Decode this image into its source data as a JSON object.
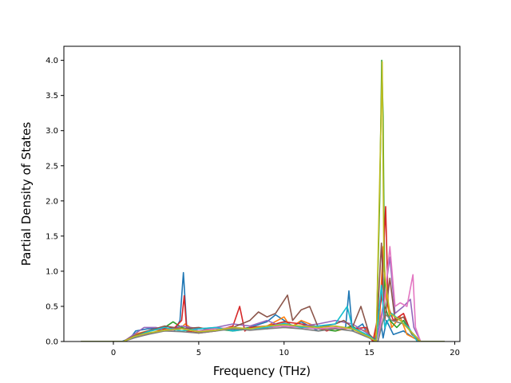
{
  "chart_data": {
    "type": "line",
    "title": "",
    "xlabel": "Frequency (THz)",
    "ylabel": "Partial Density of States",
    "xlim": [
      -2.9,
      20.3
    ],
    "ylim": [
      0.0,
      4.2
    ],
    "xticks": [
      0,
      5,
      10,
      15,
      20
    ],
    "xtick_labels": [
      "0",
      "5",
      "10",
      "15",
      "20"
    ],
    "yticks": [
      0.0,
      0.5,
      1.0,
      1.5,
      2.0,
      2.5,
      3.0,
      3.5,
      4.0
    ],
    "ytick_labels": [
      "0.0",
      "0.5",
      "1.0",
      "1.5",
      "2.0",
      "2.5",
      "3.0",
      "3.5",
      "4.0"
    ],
    "grid": false,
    "legend": "none",
    "series": [
      {
        "color": "#1f77b4",
        "points": [
          [
            -1.9,
            0
          ],
          [
            0.5,
            0
          ],
          [
            1.0,
            0.05
          ],
          [
            1.3,
            0.15
          ],
          [
            2.0,
            0.18
          ],
          [
            3.0,
            0.2
          ],
          [
            3.6,
            0.16
          ],
          [
            3.9,
            0.3
          ],
          [
            4.1,
            0.98
          ],
          [
            4.3,
            0.2
          ],
          [
            5.0,
            0.15
          ],
          [
            6.0,
            0.2
          ],
          [
            7.0,
            0.17
          ],
          [
            8.0,
            0.2
          ],
          [
            9.0,
            0.28
          ],
          [
            9.5,
            0.38
          ],
          [
            10.0,
            0.3
          ],
          [
            10.5,
            0.22
          ],
          [
            11.0,
            0.28
          ],
          [
            12.0,
            0.15
          ],
          [
            13.0,
            0.2
          ],
          [
            13.6,
            0.2
          ],
          [
            13.8,
            0.72
          ],
          [
            14.0,
            0.15
          ],
          [
            14.6,
            0.25
          ],
          [
            15.0,
            0.05
          ],
          [
            15.3,
            0
          ],
          [
            15.6,
            0.4
          ],
          [
            15.8,
            0.05
          ],
          [
            16.0,
            0.3
          ],
          [
            16.4,
            0.1
          ],
          [
            17.0,
            0.15
          ],
          [
            17.6,
            0.05
          ],
          [
            18.0,
            0
          ],
          [
            19.4,
            0
          ]
        ]
      },
      {
        "color": "#ff7f0e",
        "points": [
          [
            -1.9,
            0
          ],
          [
            0.6,
            0
          ],
          [
            1.2,
            0.1
          ],
          [
            2.0,
            0.15
          ],
          [
            3.0,
            0.18
          ],
          [
            4.0,
            0.2
          ],
          [
            4.2,
            0.25
          ],
          [
            5.0,
            0.12
          ],
          [
            6.0,
            0.2
          ],
          [
            7.0,
            0.15
          ],
          [
            8.0,
            0.18
          ],
          [
            9.0,
            0.22
          ],
          [
            10.0,
            0.35
          ],
          [
            10.4,
            0.2
          ],
          [
            11.0,
            0.3
          ],
          [
            12.0,
            0.2
          ],
          [
            13.0,
            0.15
          ],
          [
            14.0,
            0.2
          ],
          [
            14.8,
            0.15
          ],
          [
            15.2,
            0
          ],
          [
            15.6,
            0.3
          ],
          [
            15.8,
            1.35
          ],
          [
            16.0,
            0.6
          ],
          [
            16.3,
            0.2
          ],
          [
            16.8,
            0.35
          ],
          [
            17.2,
            0.1
          ],
          [
            17.6,
            0.05
          ],
          [
            18.0,
            0
          ],
          [
            19.4,
            0
          ]
        ]
      },
      {
        "color": "#2ca02c",
        "points": [
          [
            -1.9,
            0
          ],
          [
            0.6,
            0
          ],
          [
            1.2,
            0.08
          ],
          [
            2.0,
            0.14
          ],
          [
            3.0,
            0.2
          ],
          [
            3.5,
            0.28
          ],
          [
            4.0,
            0.2
          ],
          [
            5.0,
            0.14
          ],
          [
            6.0,
            0.18
          ],
          [
            7.0,
            0.15
          ],
          [
            8.0,
            0.2
          ],
          [
            9.0,
            0.18
          ],
          [
            10.0,
            0.25
          ],
          [
            11.0,
            0.2
          ],
          [
            12.0,
            0.18
          ],
          [
            13.0,
            0.15
          ],
          [
            14.0,
            0.22
          ],
          [
            15.0,
            0.05
          ],
          [
            15.4,
            0
          ],
          [
            15.6,
            2.0
          ],
          [
            15.72,
            4.0
          ],
          [
            15.8,
            3.2
          ],
          [
            15.9,
            0.5
          ],
          [
            16.2,
            0.3
          ],
          [
            16.6,
            0.2
          ],
          [
            17.0,
            0.3
          ],
          [
            17.5,
            0.1
          ],
          [
            18.0,
            0
          ],
          [
            19.4,
            0
          ]
        ]
      },
      {
        "color": "#d62728",
        "points": [
          [
            -1.9,
            0
          ],
          [
            0.6,
            0
          ],
          [
            1.2,
            0.06
          ],
          [
            2.0,
            0.1
          ],
          [
            3.0,
            0.18
          ],
          [
            3.6,
            0.2
          ],
          [
            4.0,
            0.3
          ],
          [
            4.15,
            0.65
          ],
          [
            4.3,
            0.15
          ],
          [
            5.0,
            0.12
          ],
          [
            6.0,
            0.15
          ],
          [
            7.0,
            0.22
          ],
          [
            7.4,
            0.5
          ],
          [
            7.7,
            0.15
          ],
          [
            8.0,
            0.2
          ],
          [
            9.0,
            0.22
          ],
          [
            10.0,
            0.28
          ],
          [
            11.0,
            0.25
          ],
          [
            12.0,
            0.2
          ],
          [
            12.5,
            0.15
          ],
          [
            13.0,
            0.2
          ],
          [
            14.0,
            0.18
          ],
          [
            14.8,
            0.2
          ],
          [
            15.2,
            0
          ],
          [
            15.7,
            0.6
          ],
          [
            15.95,
            1.92
          ],
          [
            16.1,
            0.5
          ],
          [
            16.4,
            0.3
          ],
          [
            17.0,
            0.4
          ],
          [
            17.4,
            0.15
          ],
          [
            18.0,
            0
          ],
          [
            19.4,
            0
          ]
        ]
      },
      {
        "color": "#9467bd",
        "points": [
          [
            -1.9,
            0
          ],
          [
            0.6,
            0
          ],
          [
            1.2,
            0.1
          ],
          [
            1.8,
            0.2
          ],
          [
            2.5,
            0.2
          ],
          [
            3.0,
            0.15
          ],
          [
            4.0,
            0.22
          ],
          [
            5.0,
            0.18
          ],
          [
            6.0,
            0.2
          ],
          [
            7.0,
            0.25
          ],
          [
            8.0,
            0.22
          ],
          [
            9.0,
            0.3
          ],
          [
            10.0,
            0.2
          ],
          [
            11.0,
            0.22
          ],
          [
            12.0,
            0.25
          ],
          [
            13.0,
            0.3
          ],
          [
            14.0,
            0.25
          ],
          [
            15.0,
            0.1
          ],
          [
            15.4,
            0
          ],
          [
            15.8,
            0.5
          ],
          [
            16.2,
            1.2
          ],
          [
            16.5,
            0.4
          ],
          [
            17.0,
            0.5
          ],
          [
            17.4,
            0.6
          ],
          [
            17.6,
            0.2
          ],
          [
            18.0,
            0
          ],
          [
            19.4,
            0
          ]
        ]
      },
      {
        "color": "#8c564b",
        "points": [
          [
            -1.9,
            0
          ],
          [
            0.6,
            0
          ],
          [
            1.2,
            0.08
          ],
          [
            2.0,
            0.15
          ],
          [
            3.0,
            0.22
          ],
          [
            4.0,
            0.18
          ],
          [
            5.0,
            0.2
          ],
          [
            6.0,
            0.15
          ],
          [
            7.0,
            0.2
          ],
          [
            8.0,
            0.3
          ],
          [
            8.5,
            0.42
          ],
          [
            9.0,
            0.35
          ],
          [
            9.5,
            0.4
          ],
          [
            10.2,
            0.66
          ],
          [
            10.5,
            0.3
          ],
          [
            11.0,
            0.45
          ],
          [
            11.5,
            0.5
          ],
          [
            12.0,
            0.2
          ],
          [
            13.0,
            0.25
          ],
          [
            13.5,
            0.3
          ],
          [
            14.0,
            0.2
          ],
          [
            14.5,
            0.5
          ],
          [
            15.0,
            0.1
          ],
          [
            15.4,
            0
          ],
          [
            15.7,
            1.4
          ],
          [
            15.9,
            0.3
          ],
          [
            16.2,
            0.9
          ],
          [
            16.5,
            0.3
          ],
          [
            17.0,
            0.35
          ],
          [
            17.5,
            0.1
          ],
          [
            18.0,
            0
          ],
          [
            19.4,
            0
          ]
        ]
      },
      {
        "color": "#e377c2",
        "points": [
          [
            -1.9,
            0
          ],
          [
            0.6,
            0
          ],
          [
            1.2,
            0.05
          ],
          [
            2.0,
            0.12
          ],
          [
            3.0,
            0.15
          ],
          [
            4.0,
            0.18
          ],
          [
            5.0,
            0.15
          ],
          [
            6.0,
            0.18
          ],
          [
            7.0,
            0.2
          ],
          [
            8.0,
            0.18
          ],
          [
            9.0,
            0.2
          ],
          [
            10.0,
            0.22
          ],
          [
            11.0,
            0.2
          ],
          [
            12.0,
            0.18
          ],
          [
            13.0,
            0.2
          ],
          [
            14.0,
            0.18
          ],
          [
            15.0,
            0.05
          ],
          [
            15.5,
            0
          ],
          [
            15.9,
            0.6
          ],
          [
            16.2,
            1.35
          ],
          [
            16.5,
            0.5
          ],
          [
            16.8,
            0.55
          ],
          [
            17.2,
            0.5
          ],
          [
            17.55,
            0.95
          ],
          [
            17.7,
            0.2
          ],
          [
            18.0,
            0
          ],
          [
            19.4,
            0
          ]
        ]
      },
      {
        "color": "#17becf",
        "points": [
          [
            -1.9,
            0
          ],
          [
            0.6,
            0
          ],
          [
            1.2,
            0.06
          ],
          [
            2.0,
            0.14
          ],
          [
            3.0,
            0.2
          ],
          [
            4.0,
            0.15
          ],
          [
            5.0,
            0.18
          ],
          [
            6.0,
            0.2
          ],
          [
            7.0,
            0.15
          ],
          [
            8.0,
            0.18
          ],
          [
            9.0,
            0.2
          ],
          [
            10.0,
            0.26
          ],
          [
            11.0,
            0.2
          ],
          [
            12.0,
            0.22
          ],
          [
            13.0,
            0.25
          ],
          [
            13.7,
            0.5
          ],
          [
            14.0,
            0.2
          ],
          [
            15.0,
            0.08
          ],
          [
            15.4,
            0
          ],
          [
            15.7,
            0.8
          ],
          [
            15.9,
            0.2
          ],
          [
            16.3,
            0.4
          ],
          [
            16.8,
            0.3
          ],
          [
            17.3,
            0.2
          ],
          [
            17.8,
            0
          ],
          [
            19.4,
            0
          ]
        ]
      },
      {
        "color": "#7f7f7f",
        "points": [
          [
            -1.9,
            0
          ],
          [
            0.6,
            0
          ],
          [
            1.2,
            0.05
          ],
          [
            2.0,
            0.1
          ],
          [
            3.0,
            0.15
          ],
          [
            4.0,
            0.14
          ],
          [
            5.0,
            0.12
          ],
          [
            6.0,
            0.15
          ],
          [
            7.0,
            0.18
          ],
          [
            8.0,
            0.16
          ],
          [
            9.0,
            0.18
          ],
          [
            10.0,
            0.2
          ],
          [
            11.0,
            0.18
          ],
          [
            12.0,
            0.15
          ],
          [
            13.0,
            0.18
          ],
          [
            14.0,
            0.15
          ],
          [
            15.0,
            0.05
          ],
          [
            15.5,
            0
          ],
          [
            15.9,
            0.4
          ],
          [
            16.3,
            0.3
          ],
          [
            17.0,
            0.25
          ],
          [
            17.6,
            0.1
          ],
          [
            18.0,
            0
          ],
          [
            19.4,
            0
          ]
        ]
      },
      {
        "color": "#bcbd22",
        "points": [
          [
            -1.9,
            0
          ],
          [
            0.6,
            0
          ],
          [
            1.2,
            0.07
          ],
          [
            2.0,
            0.12
          ],
          [
            3.0,
            0.16
          ],
          [
            4.0,
            0.18
          ],
          [
            5.0,
            0.14
          ],
          [
            6.0,
            0.16
          ],
          [
            7.0,
            0.2
          ],
          [
            8.0,
            0.18
          ],
          [
            9.0,
            0.22
          ],
          [
            10.0,
            0.24
          ],
          [
            11.0,
            0.22
          ],
          [
            12.0,
            0.2
          ],
          [
            13.0,
            0.22
          ],
          [
            14.0,
            0.18
          ],
          [
            15.0,
            0.06
          ],
          [
            15.4,
            0
          ],
          [
            15.75,
            3.98
          ],
          [
            15.85,
            1.0
          ],
          [
            16.2,
            0.4
          ],
          [
            16.8,
            0.3
          ],
          [
            17.4,
            0.15
          ],
          [
            18.0,
            0
          ],
          [
            19.4,
            0
          ]
        ]
      }
    ]
  }
}
